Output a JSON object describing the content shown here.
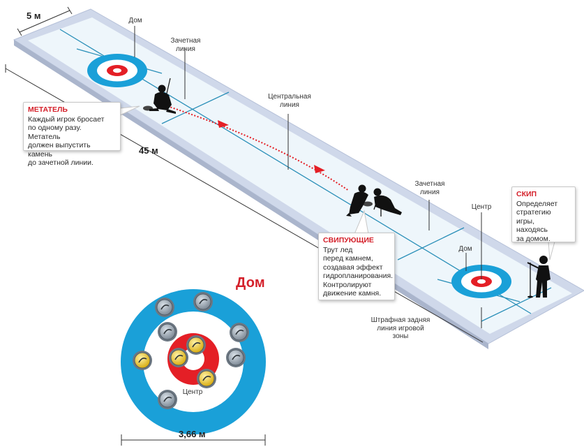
{
  "dimensions": {
    "width_label": "5 м",
    "length_label": "45 м",
    "house_diameter_label": "3,66 м"
  },
  "labels": {
    "house_top": "Дом",
    "hog_line_top": "Зачетная\nлиния",
    "center_line": "Центральная\nлиния",
    "hog_line_bottom": "Зачетная\nлиния",
    "center_bottom": "Центр",
    "house_bottom": "Дом",
    "back_line": "Штрафная задняя\nлиния игровой\nзоны"
  },
  "callouts": {
    "thrower": {
      "title": "МЕТАТЕЛЬ",
      "text": "Каждый игрок бросает\nпо одному разу. Метатель\nдолжен выпустить камень\nдо зачетной линии."
    },
    "sweepers": {
      "title": "СВИПУЮЩИЕ",
      "text": "Трут лед\nперед камнем,\nсоздавая эффект\nгидропланирования.\nКонтролируют\nдвижение камня."
    },
    "skip": {
      "title": "СКИП",
      "text": "Определяет\nстратегию игры,\nнаходясь\nза домом."
    }
  },
  "house_detail": {
    "title": "Дом",
    "center_label": "Центр"
  },
  "colors": {
    "ice": "#eef6fb",
    "frame": "#c9d3e6",
    "ring_blue": "#1aa0d8",
    "ring_red": "#e41f26",
    "accent_red": "#d4202a",
    "line_teal": "#2a8fb8",
    "stone_yellow": "#f2d13a",
    "stone_grey": "#9aa6b2"
  }
}
